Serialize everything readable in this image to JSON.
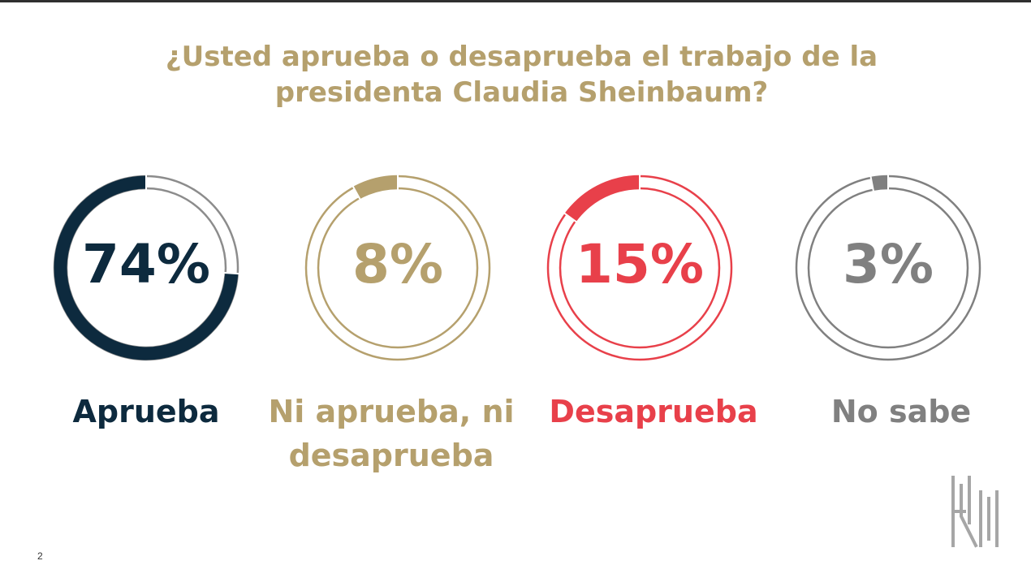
{
  "title": "¿Usted aprueba o desaprueba el trabajo de la presidenta Claudia Sheinbaum?",
  "page_number": "2",
  "chart_data": {
    "type": "pie",
    "title": "¿Usted aprueba o desaprueba el trabajo de la presidenta Claudia Sheinbaum?",
    "categories": [
      "Aprueba",
      "Ni aprueba, ni desaprueba",
      "Desaprueba",
      "No sabe"
    ],
    "values": [
      74,
      8,
      15,
      3
    ],
    "value_labels": [
      "74%",
      "8%",
      "15%",
      "3%"
    ],
    "colors": [
      "#0d2a3e",
      "#b5a06d",
      "#e8404a",
      "#808080"
    ],
    "legend": "none"
  },
  "colors": {
    "title": "#b5a06d",
    "page_background": "#ffffff",
    "logo": "#a6a6a6"
  },
  "logo": {
    "icon": "company-logo-icon"
  }
}
